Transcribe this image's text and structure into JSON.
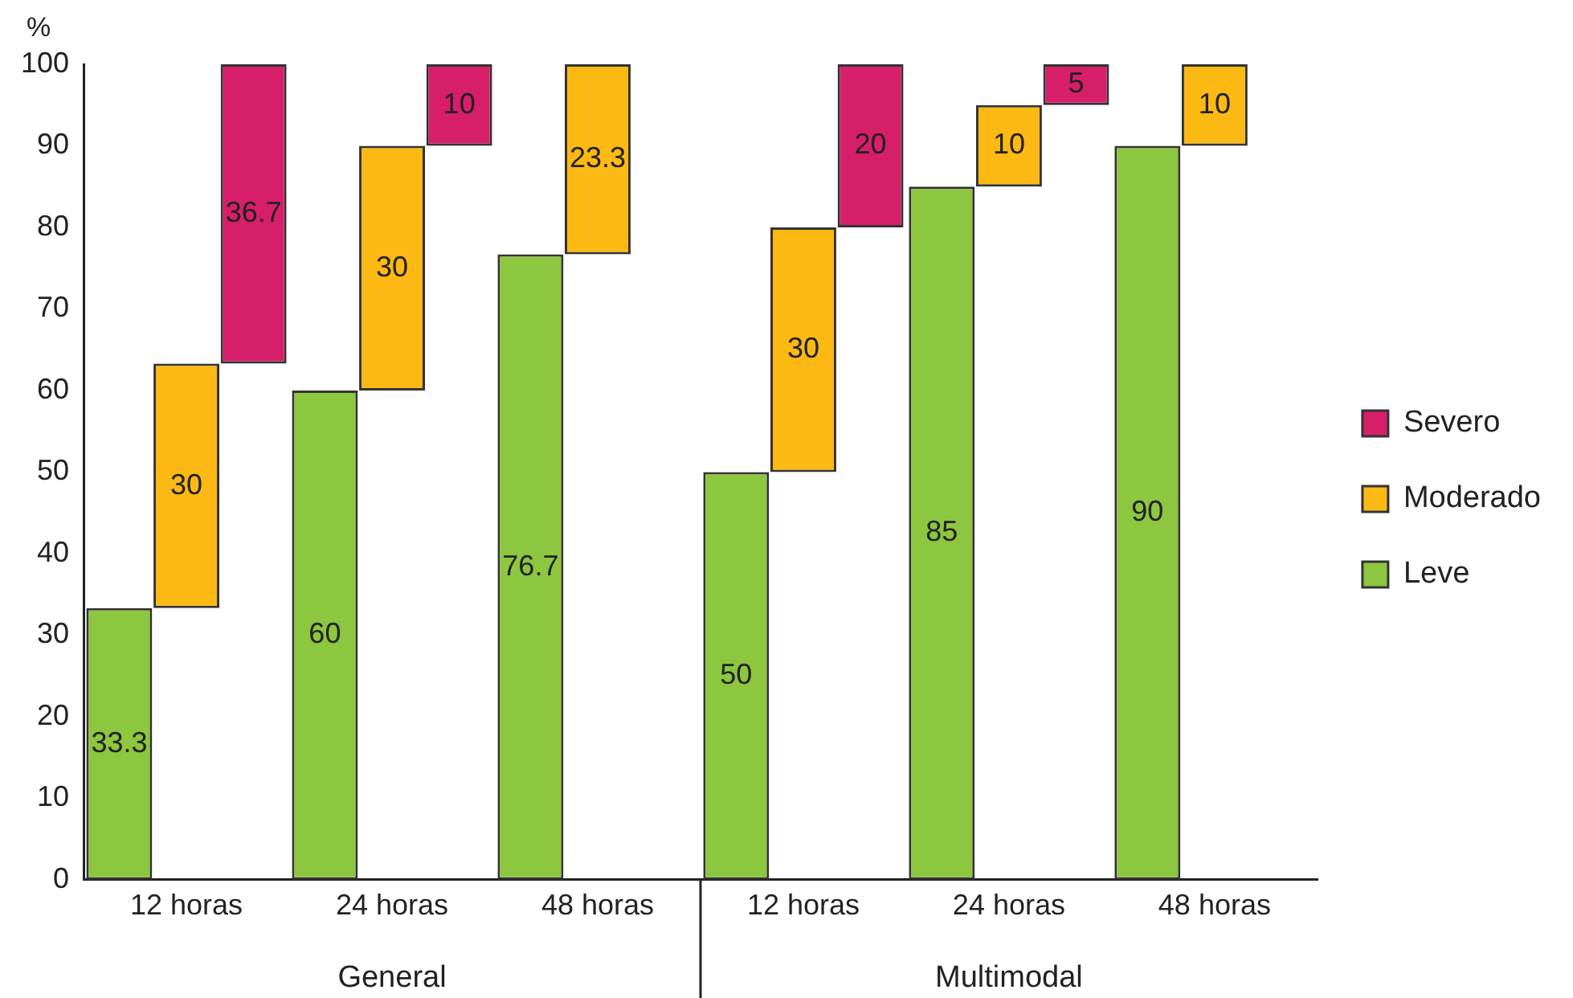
{
  "chart_data": {
    "type": "bar",
    "ylabel": "%",
    "categories": [
      "12 horas",
      "24 horas",
      "48 horas",
      "12 horas",
      "24 horas",
      "48 horas"
    ],
    "series": [
      {
        "name": "Leve",
        "color": "#8dc63f",
        "values": [
          33.3,
          60,
          76.7,
          50,
          85,
          90
        ]
      },
      {
        "name": "Moderado",
        "color": "#fdb913",
        "values": [
          30,
          30,
          23.3,
          30,
          10,
          10
        ],
        "base": [
          33.3,
          60,
          76.7,
          50,
          85,
          90
        ]
      },
      {
        "name": "Severo",
        "color": "#d71f69",
        "values": [
          36.7,
          10,
          null,
          20,
          5,
          null
        ],
        "base": [
          63.3,
          90,
          null,
          80,
          95,
          null
        ]
      }
    ],
    "ylim": [
      0,
      100
    ],
    "yticks": [
      0,
      10,
      20,
      30,
      40,
      50,
      60,
      70,
      80,
      90,
      100
    ],
    "grid": false,
    "legend": "right",
    "data_labels": true,
    "annotations": [
      "General",
      "Multimodal"
    ]
  }
}
